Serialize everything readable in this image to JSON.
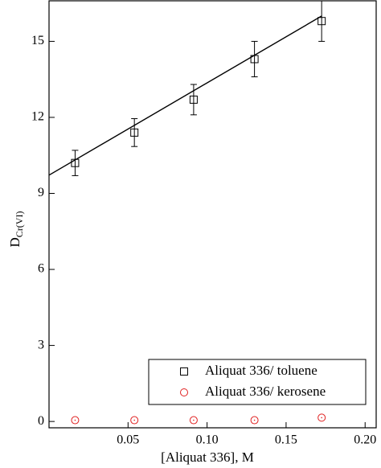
{
  "chart_data": {
    "type": "scatter",
    "xlabel": "[Aliquat 336], M",
    "ylabel": "D",
    "ylabel_sub": "Cr(VI)",
    "xlim": [
      0,
      0.207
    ],
    "ylim": [
      -0.25,
      16.6
    ],
    "xticks": [
      0.05,
      {
        "value": 0.1,
        "label": "0.10"
      },
      0.15,
      {
        "value": 0.2,
        "label": "0.20"
      }
    ],
    "yticks": [
      0,
      3,
      6,
      9,
      12,
      15
    ],
    "legend": "lower right",
    "series": [
      {
        "name": "Aliquat 336/ toluene",
        "color": "#000000",
        "marker": "square",
        "x": [
          0.0165,
          0.054,
          0.0915,
          0.13,
          0.1725
        ],
        "values": [
          10.2,
          11.4,
          12.7,
          14.3,
          15.8
        ],
        "errors": [
          0.5,
          0.55,
          0.6,
          0.7,
          0.8
        ]
      },
      {
        "name": "Aliquat 336/ kerosene",
        "color": "#e02020",
        "marker": "circle",
        "x": [
          0.0165,
          0.054,
          0.0915,
          0.13,
          0.1725
        ],
        "values": [
          0.05,
          0.05,
          0.05,
          0.05,
          0.15
        ]
      }
    ],
    "fit": {
      "color": "#000000",
      "x": [
        0,
        0.1725
      ],
      "values": [
        9.72,
        16.0
      ]
    }
  }
}
